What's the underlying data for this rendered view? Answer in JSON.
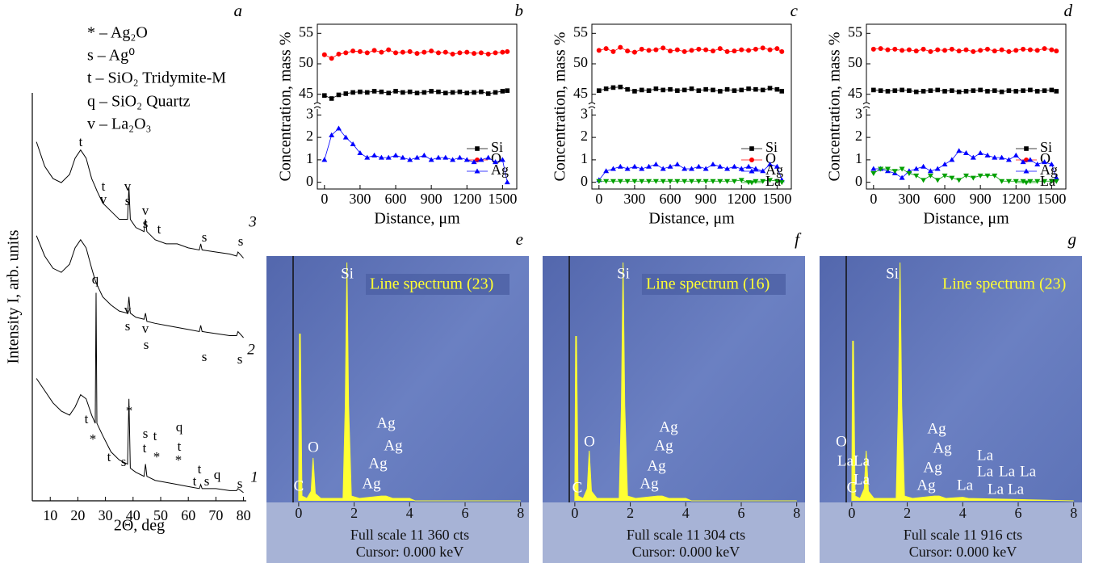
{
  "chart_data": [
    {
      "type": "line",
      "panel_label": "a",
      "legend_text": [
        "* – Ag₂O",
        "s – Ag⁰",
        "t – SiO₂ Tridymite-M",
        "q – SiO₂ Quartz",
        "v – La₂O₃"
      ],
      "x_label": "2Θ, deg",
      "y_label": "Intensity I, arb. units",
      "x": [
        5,
        8,
        11,
        14,
        17,
        19,
        21,
        23,
        25,
        26.3,
        26.6,
        26.9,
        29,
        32,
        35,
        38,
        38.5,
        39,
        41,
        44,
        44.5,
        45,
        48,
        52,
        56,
        60,
        64,
        64.5,
        65,
        70,
        75,
        77.5,
        78,
        80
      ],
      "series": [
        {
          "name": "3",
          "color": "#000000",
          "values": [
            88,
            82,
            79,
            78,
            80,
            84,
            86,
            84,
            79,
            77,
            76.5,
            76,
            73,
            71,
            69,
            69,
            77,
            69,
            67,
            66,
            69,
            66,
            64,
            63,
            63,
            62,
            61.5,
            63,
            61.5,
            61,
            60.5,
            60,
            61,
            59.5
          ]
        },
        {
          "name": "2",
          "color": "#000000",
          "values": [
            65,
            60,
            57,
            56,
            58,
            62,
            64,
            62,
            57,
            54,
            53.5,
            53,
            50,
            48,
            46.5,
            46,
            50,
            46,
            45,
            44.5,
            46,
            44,
            43.5,
            43,
            42.5,
            42,
            41.5,
            43,
            41.5,
            41,
            40.5,
            40.5,
            41.5,
            40
          ]
        },
        {
          "name": "1",
          "color": "#000000",
          "values": [
            30,
            27,
            24,
            22,
            21,
            23,
            26,
            25,
            21,
            19,
            51,
            19,
            16,
            12,
            10,
            9,
            25,
            8,
            7,
            6,
            9,
            6,
            5,
            4.5,
            4,
            3.5,
            3,
            4,
            3,
            3,
            2.5,
            2.5,
            3,
            2
          ]
        }
      ],
      "xlim": [
        3.5,
        81
      ],
      "ylim": [
        0,
        100
      ],
      "xticks": [
        10,
        20,
        30,
        40,
        50,
        60,
        70,
        80
      ],
      "peak_labels": [
        "t",
        "t",
        "v",
        "v",
        "s",
        "v",
        "s",
        "t",
        "s",
        "s",
        "v",
        "s",
        "v",
        "s",
        "s",
        "s",
        "q",
        "t",
        "*",
        "*",
        "t",
        "s",
        "s",
        "t",
        "t",
        "*",
        "q",
        "t",
        "*",
        "t",
        "t",
        "s",
        "q",
        "s"
      ]
    },
    {
      "type": "line",
      "panel_label": "b",
      "y_label": "Concentration, mass %",
      "x_label": "Distance, μm",
      "x": [
        0,
        60,
        120,
        180,
        240,
        300,
        360,
        420,
        480,
        540,
        600,
        660,
        720,
        780,
        840,
        900,
        960,
        1020,
        1080,
        1140,
        1200,
        1260,
        1320,
        1380,
        1440,
        1500,
        1540
      ],
      "series": [
        {
          "name": "Si",
          "color": "#000000",
          "marker": "square",
          "values": [
            44.8,
            44.3,
            44.9,
            45.1,
            45.3,
            45.4,
            45.3,
            45.5,
            45.4,
            45.2,
            45.5,
            45.3,
            45.4,
            45.2,
            45.3,
            45.5,
            45.4,
            45.2,
            45.3,
            45.4,
            45.2,
            45.3,
            45.4,
            45.1,
            45.3,
            45.5,
            45.6
          ]
        },
        {
          "name": "O",
          "color": "#ff0000",
          "marker": "circle",
          "values": [
            51.5,
            50.9,
            51.6,
            51.8,
            52.1,
            52.0,
            51.8,
            52.2,
            51.9,
            52.3,
            51.8,
            51.9,
            52.0,
            51.7,
            51.9,
            52.1,
            51.8,
            51.9,
            51.6,
            51.8,
            51.9,
            51.7,
            51.8,
            51.6,
            51.8,
            51.9,
            52.0
          ]
        },
        {
          "name": "Ag",
          "color": "#0000ff",
          "marker": "triangle",
          "values": [
            1.0,
            2.1,
            2.4,
            2.0,
            1.7,
            1.3,
            1.1,
            1.2,
            1.1,
            1.1,
            1.2,
            1.1,
            1.0,
            1.1,
            1.2,
            1.0,
            1.1,
            1.1,
            1.0,
            1.1,
            1.0,
            0.9,
            1.0,
            1.1,
            0.9,
            1.0,
            0.0
          ]
        }
      ],
      "xlim": [
        -60,
        1620
      ],
      "xticks": [
        0,
        300,
        600,
        900,
        1200,
        1500
      ],
      "ylim": [
        -0.3,
        3.3
      ],
      "ylim_upper": [
        43.5,
        56.5
      ],
      "yticks": [
        0,
        1,
        2,
        3,
        45,
        50,
        55
      ],
      "axis_break": true
    },
    {
      "type": "line",
      "panel_label": "c",
      "y_label": "Concentration, mass %",
      "x_label": "Distance, μm",
      "x": [
        0,
        60,
        120,
        180,
        240,
        300,
        360,
        420,
        480,
        540,
        600,
        660,
        720,
        780,
        840,
        900,
        960,
        1020,
        1080,
        1140,
        1200,
        1260,
        1320,
        1380,
        1440,
        1500,
        1540
      ],
      "series": [
        {
          "name": "Si",
          "color": "#000000",
          "marker": "square",
          "values": [
            45.6,
            45.9,
            46.1,
            46.2,
            45.8,
            45.5,
            45.7,
            45.6,
            45.9,
            45.7,
            45.8,
            45.6,
            45.7,
            45.9,
            45.6,
            45.8,
            45.7,
            45.5,
            45.8,
            45.6,
            45.7,
            45.9,
            45.8,
            45.7,
            46.0,
            45.8,
            45.5
          ]
        },
        {
          "name": "O",
          "color": "#ff0000",
          "marker": "circle",
          "values": [
            52.2,
            52.5,
            52.0,
            52.7,
            52.1,
            51.9,
            52.4,
            52.2,
            52.3,
            52.6,
            52.1,
            52.3,
            52.0,
            52.2,
            52.4,
            52.3,
            52.1,
            52.5,
            52.0,
            52.1,
            52.3,
            52.2,
            52.4,
            52.6,
            52.3,
            52.5,
            52.0
          ]
        },
        {
          "name": "Ag",
          "color": "#0000ff",
          "marker": "triangle",
          "values": [
            0.1,
            0.5,
            0.6,
            0.7,
            0.6,
            0.7,
            0.6,
            0.7,
            0.8,
            0.6,
            0.7,
            0.8,
            0.6,
            0.6,
            0.7,
            0.6,
            0.8,
            0.7,
            0.6,
            0.7,
            0.6,
            0.7,
            0.6,
            0.5,
            0.8,
            0.7,
            0.1
          ]
        },
        {
          "name": "La",
          "color": "#00a000",
          "marker": "triangle-down",
          "values": [
            0.05,
            0.05,
            0.05,
            0.05,
            0.05,
            0.05,
            0.05,
            0.05,
            0.05,
            0.05,
            0.05,
            0.05,
            0.05,
            0.05,
            0.05,
            0.05,
            0.05,
            0.05,
            0.05,
            0.05,
            0.1,
            0.0,
            0.05,
            0.05,
            0.1,
            0.05,
            0.0
          ]
        }
      ],
      "xlim": [
        -60,
        1620
      ],
      "xticks": [
        0,
        300,
        600,
        900,
        1200,
        1500
      ],
      "ylim": [
        -0.3,
        3.3
      ],
      "ylim_upper": [
        43.5,
        56.5
      ],
      "yticks": [
        0,
        1,
        2,
        3,
        45,
        50,
        55
      ],
      "axis_break": true
    },
    {
      "type": "line",
      "panel_label": "d",
      "y_label": "Concentration, mass %",
      "x_label": "Distance, μm",
      "x": [
        0,
        60,
        120,
        180,
        240,
        300,
        360,
        420,
        480,
        540,
        600,
        660,
        720,
        780,
        840,
        900,
        960,
        1020,
        1080,
        1140,
        1200,
        1260,
        1320,
        1380,
        1440,
        1500,
        1540
      ],
      "series": [
        {
          "name": "Si",
          "color": "#000000",
          "marker": "square",
          "values": [
            45.7,
            45.6,
            45.5,
            45.6,
            45.7,
            45.6,
            45.4,
            45.5,
            45.6,
            45.7,
            45.5,
            45.6,
            45.4,
            45.5,
            45.6,
            45.7,
            45.5,
            45.6,
            45.4,
            45.6,
            45.5,
            45.6,
            45.7,
            45.5,
            45.6,
            45.7,
            45.5
          ]
        },
        {
          "name": "O",
          "color": "#ff0000",
          "marker": "circle",
          "values": [
            52.4,
            52.5,
            52.3,
            52.4,
            52.2,
            52.3,
            52.1,
            52.4,
            52.0,
            52.3,
            52.2,
            52.4,
            52.1,
            52.3,
            52.0,
            52.2,
            52.4,
            52.1,
            52.3,
            52.0,
            52.2,
            52.4,
            52.3,
            52.2,
            52.5,
            52.3,
            52.1
          ]
        },
        {
          "name": "Ag",
          "color": "#0000ff",
          "marker": "triangle",
          "values": [
            0.6,
            0.6,
            0.5,
            0.4,
            0.2,
            0.5,
            0.6,
            0.7,
            0.5,
            0.6,
            0.8,
            1.0,
            1.4,
            1.3,
            1.1,
            1.3,
            1.2,
            1.1,
            1.1,
            1.0,
            1.2,
            0.9,
            1.0,
            0.8,
            0.9,
            0.8,
            0.2
          ]
        },
        {
          "name": "La",
          "color": "#00a000",
          "marker": "triangle-down",
          "values": [
            0.4,
            0.6,
            0.6,
            0.5,
            0.6,
            0.4,
            0.3,
            0.1,
            0.3,
            0.1,
            0.3,
            0.2,
            0.1,
            0.3,
            0.2,
            0.3,
            0.3,
            0.3,
            0.05,
            0.05,
            0.05,
            0.05,
            0.05,
            0.05,
            0.05,
            0.05,
            0.05
          ]
        }
      ],
      "xlim": [
        -60,
        1620
      ],
      "xticks": [
        0,
        300,
        600,
        900,
        1200,
        1500
      ],
      "ylim": [
        -0.3,
        3.3
      ],
      "ylim_upper": [
        43.5,
        56.5
      ],
      "yticks": [
        0,
        1,
        2,
        3,
        45,
        50,
        55
      ],
      "axis_break": true
    },
    {
      "type": "spectrum",
      "panel_label": "e",
      "title": "Line spectrum (23)",
      "x": [
        0,
        0.03,
        0.06,
        0.12,
        0.3,
        0.45,
        0.52,
        0.6,
        0.8,
        1.6,
        1.68,
        1.74,
        1.8,
        1.9,
        2.2,
        2.98,
        3.15,
        3.4,
        4.0,
        4.2,
        8.0
      ],
      "values": [
        0,
        70,
        70,
        2,
        1,
        4,
        18,
        3,
        1,
        1,
        40,
        100,
        40,
        2,
        1,
        2,
        2,
        1,
        1,
        0,
        0
      ],
      "color": "#ffff33",
      "xlim": [
        -0.2,
        8.3
      ],
      "ylim": [
        0,
        100
      ],
      "xticks": [
        0,
        2,
        4,
        6,
        8
      ],
      "peak_labels": [
        "Si",
        "O",
        "C",
        "Ag",
        "Ag",
        "Ag",
        "Ag"
      ],
      "footer": [
        "Full scale 11 360 cts",
        "Cursor: 0.000 keV"
      ]
    },
    {
      "type": "spectrum",
      "panel_label": "f",
      "title": "Line spectrum (16)",
      "x": [
        0,
        0.03,
        0.06,
        0.12,
        0.3,
        0.45,
        0.52,
        0.6,
        0.8,
        1.6,
        1.68,
        1.74,
        1.8,
        1.9,
        2.2,
        2.98,
        3.15,
        3.4,
        4.0,
        4.2,
        8.0
      ],
      "values": [
        0,
        69,
        69,
        2,
        1,
        5,
        21,
        4,
        1,
        1,
        40,
        100,
        40,
        2,
        1,
        2,
        2,
        1,
        1,
        0,
        0
      ],
      "color": "#ffff33",
      "xlim": [
        -0.2,
        8.3
      ],
      "ylim": [
        0,
        100
      ],
      "xticks": [
        0,
        2,
        4,
        6,
        8
      ],
      "peak_labels": [
        "Si",
        "O",
        "C",
        "Ag",
        "Ag",
        "Ag",
        "Ag"
      ],
      "footer": [
        "Full scale 11 304 cts",
        "Cursor: 0.000 keV"
      ]
    },
    {
      "type": "spectrum",
      "panel_label": "g",
      "title": "Line spectrum (23)",
      "x": [
        0,
        0.03,
        0.06,
        0.12,
        0.3,
        0.45,
        0.52,
        0.6,
        0.8,
        1.6,
        1.68,
        1.74,
        1.8,
        1.9,
        2.2,
        2.98,
        3.15,
        3.4,
        4.0,
        4.2,
        8.0
      ],
      "values": [
        0,
        67,
        67,
        2,
        1,
        5,
        21,
        4,
        1,
        1,
        40,
        100,
        40,
        2,
        1,
        2,
        2,
        1,
        1.5,
        1,
        0
      ],
      "color": "#ffff33",
      "xlim": [
        -0.2,
        8.3
      ],
      "ylim": [
        0,
        100
      ],
      "xticks": [
        0,
        2,
        4,
        6,
        8
      ],
      "peak_labels": [
        "Si",
        "O",
        "La",
        "La",
        "La",
        "C",
        "Ag",
        "Ag",
        "Ag",
        "Ag",
        "La",
        "La",
        "La",
        "La",
        "La",
        "La",
        "La"
      ],
      "footer": [
        "Full scale 11 916 cts",
        "Cursor: 0.000 keV"
      ]
    }
  ]
}
